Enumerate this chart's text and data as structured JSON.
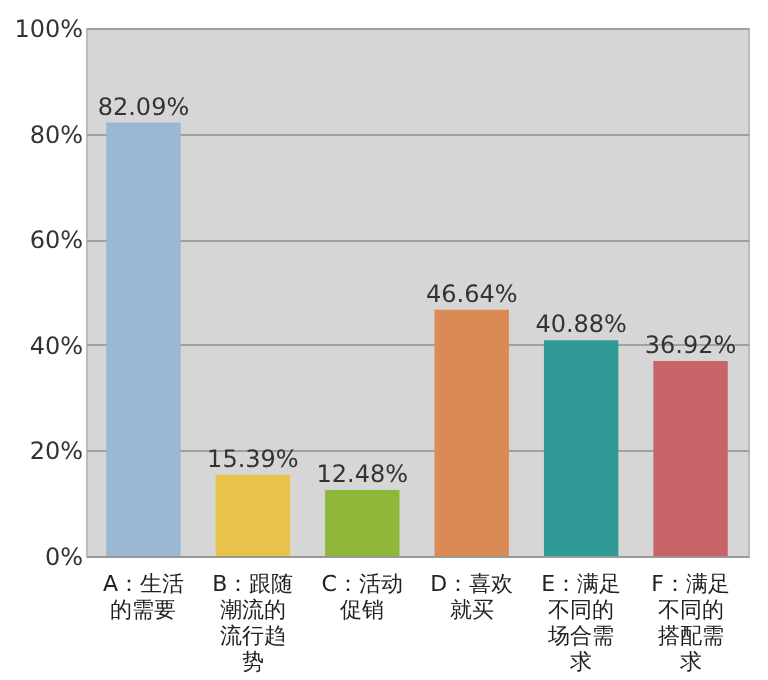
{
  "chart_data": {
    "type": "bar",
    "categories": [
      "A：生活的需要",
      "B：跟随潮流的流行趋势",
      "C：活动促销",
      "D：喜欢就买",
      "E：满足不同的场合需求",
      "F：满足不同的搭配需求"
    ],
    "values": [
      82.09,
      15.39,
      12.48,
      46.64,
      40.88,
      36.92
    ],
    "colors": [
      "#9ab8d4",
      "#e8c24a",
      "#8fb83a",
      "#d98a55",
      "#2f9a96",
      "#c86468"
    ],
    "value_labels": [
      "82.09%",
      "15.39%",
      "12.48%",
      "46.64%",
      "40.88%",
      "36.92%"
    ],
    "ylim": [
      0,
      100
    ],
    "yticks": [
      {
        "value": 0,
        "label": "0%"
      },
      {
        "value": 20,
        "label": "20%"
      },
      {
        "value": 40,
        "label": "40%"
      },
      {
        "value": 60,
        "label": "60%"
      },
      {
        "value": 80,
        "label": "80%"
      },
      {
        "value": 100,
        "label": "100%"
      }
    ],
    "grid": "y"
  }
}
